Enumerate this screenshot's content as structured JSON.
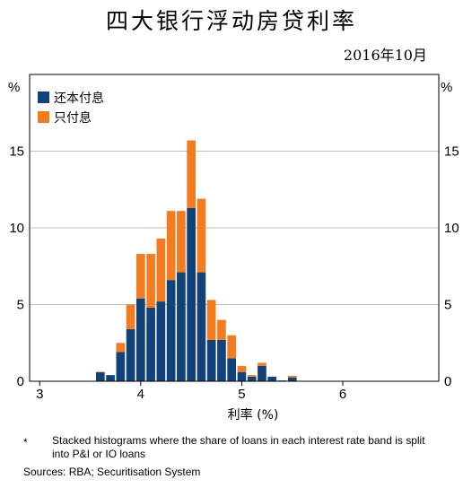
{
  "title": "四大银行浮动房贷利率",
  "subtitle": "2016年10月",
  "footnote_marker": "*",
  "footnote": "Stacked histograms where the share of loans in each interest rate band is split into P&I or IO loans",
  "sources": "Sources:   RBA; Securitisation System",
  "chart_data": {
    "type": "bar",
    "stacked": true,
    "title": "四大银行浮动房贷利率",
    "subtitle": "2016年10月",
    "xlabel": "利率 (%)",
    "ylabel_left": "%",
    "ylabel_right": "%",
    "xlim": [
      2.9,
      6.95
    ],
    "ylim": [
      0,
      20
    ],
    "x_ticks": [
      3,
      4,
      5,
      6
    ],
    "y_ticks": [
      0,
      5,
      10,
      15
    ],
    "grid": true,
    "legend_position": "top-left",
    "x": [
      3.6,
      3.7,
      3.8,
      3.9,
      4.0,
      4.1,
      4.2,
      4.3,
      4.4,
      4.5,
      4.6,
      4.7,
      4.8,
      4.9,
      5.0,
      5.1,
      5.2,
      5.3,
      5.4,
      5.5
    ],
    "series": [
      {
        "name": "还本付息",
        "color": "#12427a",
        "values": [
          0.6,
          0.4,
          1.9,
          3.4,
          5.4,
          4.8,
          5.2,
          6.6,
          7.1,
          11.3,
          7.1,
          2.7,
          2.7,
          1.5,
          0.6,
          0.3,
          1.0,
          0.3,
          0.05,
          0.25
        ]
      },
      {
        "name": "只付息",
        "color": "#f47b20",
        "values": [
          0.0,
          0.0,
          0.6,
          1.6,
          2.9,
          3.5,
          4.1,
          4.5,
          4.0,
          4.4,
          4.8,
          2.6,
          1.3,
          1.5,
          0.4,
          0.1,
          0.2,
          0.0,
          0.0,
          0.1
        ]
      }
    ]
  }
}
